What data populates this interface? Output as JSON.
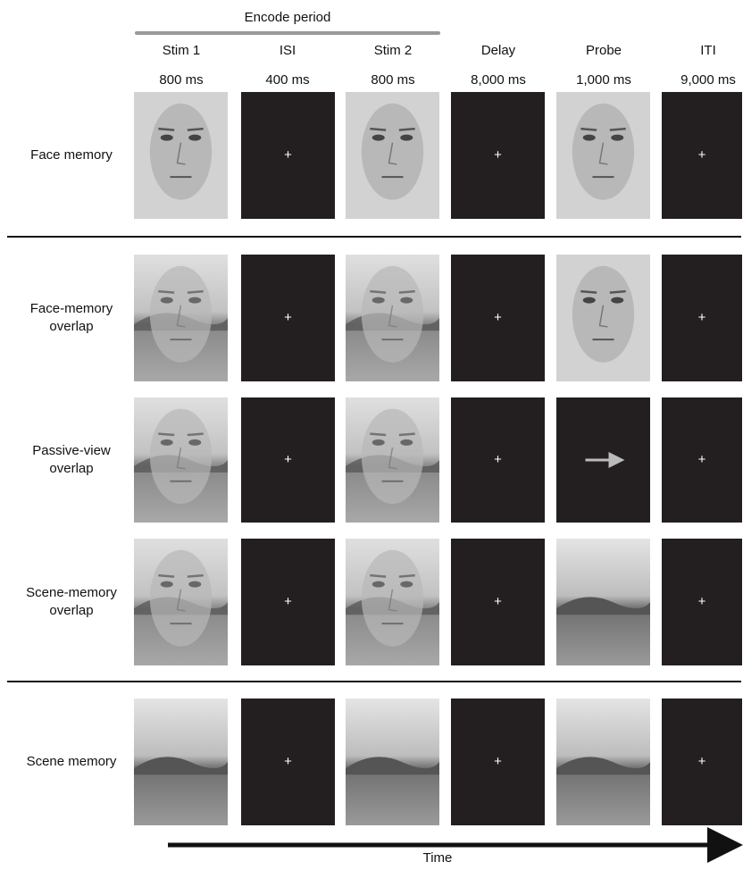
{
  "header": {
    "group_label": "Encode period"
  },
  "columns": [
    {
      "name": "Stim 1",
      "duration": "800 ms"
    },
    {
      "name": "ISI",
      "duration": "400 ms"
    },
    {
      "name": "Stim 2",
      "duration": "800 ms"
    },
    {
      "name": "Delay",
      "duration": "8,000 ms"
    },
    {
      "name": "Probe",
      "duration": "1,000 ms"
    },
    {
      "name": "ITI",
      "duration": "9,000 ms"
    }
  ],
  "rows": [
    {
      "label": [
        "Face memory"
      ]
    },
    {
      "label": [
        "Face-memory",
        "overlap"
      ]
    },
    {
      "label": [
        "Passive-view",
        "overlap"
      ]
    },
    {
      "label": [
        "Scene-memory",
        "overlap"
      ]
    },
    {
      "label": [
        "Scene memory"
      ]
    }
  ],
  "fixation": "+",
  "axis": {
    "label": "Time"
  }
}
